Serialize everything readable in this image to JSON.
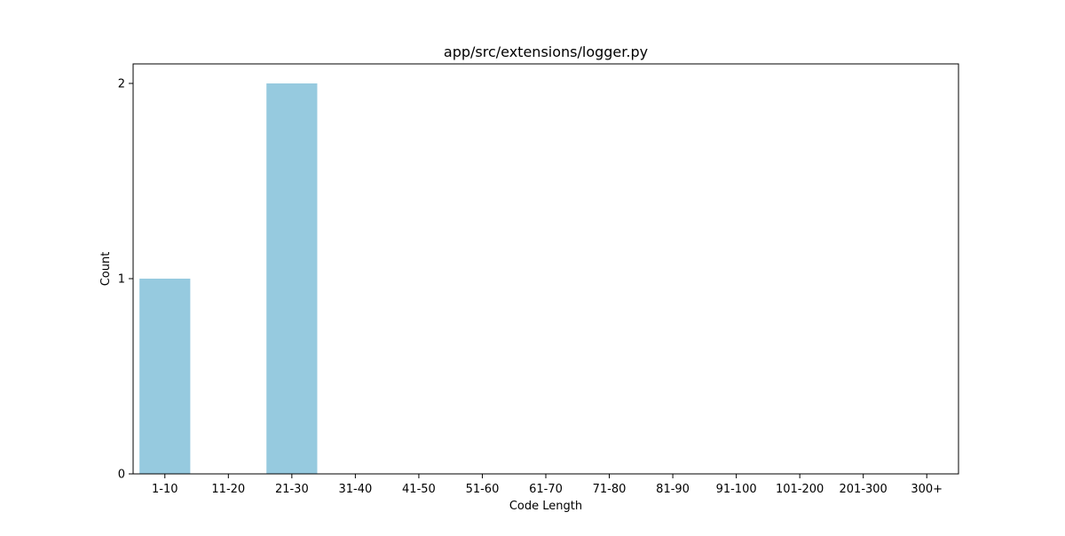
{
  "chart_data": {
    "type": "bar",
    "title": "app/src/extensions/logger.py",
    "xlabel": "Code Length",
    "ylabel": "Count",
    "categories": [
      "1-10",
      "11-20",
      "21-30",
      "31-40",
      "41-50",
      "51-60",
      "61-70",
      "71-80",
      "81-90",
      "91-100",
      "101-200",
      "201-300",
      "300+"
    ],
    "values": [
      1,
      0,
      2,
      0,
      0,
      0,
      0,
      0,
      0,
      0,
      0,
      0,
      0
    ],
    "ylim": [
      0,
      2.1
    ],
    "yticks": [
      "0",
      "1",
      "2"
    ],
    "grid": false,
    "legend": "none",
    "bar_color": "#96cadf"
  }
}
